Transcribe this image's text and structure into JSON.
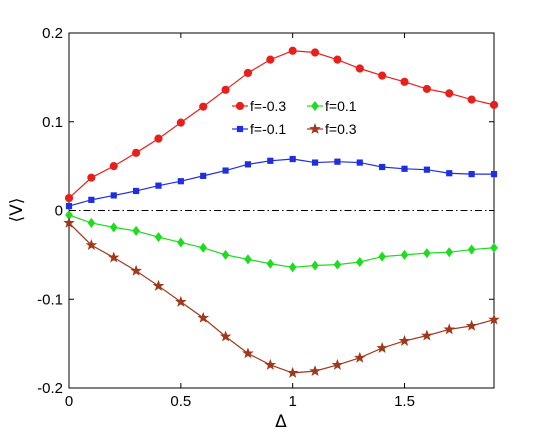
{
  "chart_data": {
    "type": "line",
    "title": "",
    "xlabel": "Δ",
    "ylabel": "⟨V⟩",
    "xlim": [
      0,
      1.9
    ],
    "ylim": [
      -0.2,
      0.2
    ],
    "xticks": [
      0,
      0.5,
      1,
      1.5
    ],
    "xtick_labels": [
      "0",
      "0.5",
      "1",
      "1.5"
    ],
    "yticks": [
      -0.2,
      -0.1,
      0,
      0.1,
      0.2
    ],
    "ytick_labels": [
      "-0.2",
      "-0.1",
      "0",
      "0.1",
      "0.2"
    ],
    "grid": false,
    "legend_position": "center",
    "x": [
      0,
      0.1,
      0.2,
      0.3,
      0.4,
      0.5,
      0.6,
      0.7,
      0.8,
      0.9,
      1.0,
      1.1,
      1.2,
      1.3,
      1.4,
      1.5,
      1.6,
      1.7,
      1.8,
      1.9
    ],
    "series": [
      {
        "name": "f=-0.3",
        "color": "#e8201c",
        "marker": "circle",
        "values": [
          0.014,
          0.037,
          0.05,
          0.065,
          0.081,
          0.099,
          0.117,
          0.136,
          0.155,
          0.17,
          0.18,
          0.178,
          0.17,
          0.16,
          0.152,
          0.145,
          0.137,
          0.132,
          0.125,
          0.119
        ]
      },
      {
        "name": "f=-0.1",
        "color": "#1f2ee0",
        "marker": "square",
        "values": [
          0.005,
          0.012,
          0.017,
          0.022,
          0.028,
          0.033,
          0.039,
          0.045,
          0.052,
          0.056,
          0.058,
          0.054,
          0.055,
          0.054,
          0.049,
          0.047,
          0.046,
          0.042,
          0.041,
          0.041
        ]
      },
      {
        "name": "f=0.1",
        "color": "#1edc1e",
        "marker": "diamond",
        "values": [
          -0.005,
          -0.014,
          -0.019,
          -0.023,
          -0.03,
          -0.036,
          -0.042,
          -0.05,
          -0.055,
          -0.06,
          -0.064,
          -0.062,
          -0.061,
          -0.058,
          -0.052,
          -0.05,
          -0.048,
          -0.047,
          -0.044,
          -0.042
        ]
      },
      {
        "name": "f=0.3",
        "color": "#a1381c",
        "marker": "star",
        "values": [
          -0.014,
          -0.039,
          -0.053,
          -0.068,
          -0.085,
          -0.103,
          -0.121,
          -0.142,
          -0.161,
          -0.174,
          -0.183,
          -0.181,
          -0.174,
          -0.166,
          -0.155,
          -0.147,
          -0.141,
          -0.134,
          -0.13,
          -0.123
        ]
      }
    ],
    "reference_line": {
      "y": 0,
      "style": "dash-dot",
      "color": "#000000"
    }
  }
}
